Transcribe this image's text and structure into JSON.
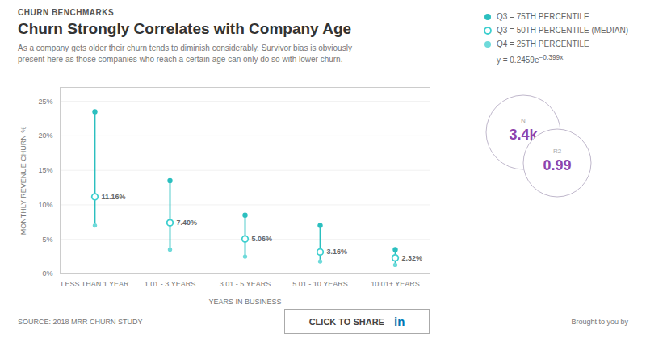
{
  "chart_data": {
    "type": "scatter",
    "tag": "CHURN BENCHMARKS",
    "title": "Churn Strongly Correlates with Company Age",
    "subtitle": "As a company gets older their churn tends to diminish considerably. Survivor bias is obviously\npresent here as those companies who reach a certain age can only do so with lower churn.",
    "xlabel": "YEARS IN BUSINESS",
    "ylabel": "MONTHLY REVENUE CHURN %",
    "categories": [
      "LESS THAN 1 YEAR",
      "1.01 - 3 YEARS",
      "3.01 - 5 YEARS",
      "5.01 - 10 YEARS",
      "10.01+ YEARS"
    ],
    "series": [
      {
        "name": "Q3 = 75TH PERCENTILE",
        "color": "#2bbfbf",
        "marker": "circle",
        "values": [
          0.235,
          0.135,
          0.085,
          0.07,
          0.035
        ]
      },
      {
        "name": "Q3 = 50TH PERCENTILE (MEDIAN)",
        "color": "#3ecfcf",
        "marker": "open_circle",
        "values": [
          0.1116,
          0.074,
          0.0506,
          0.0316,
          0.0232
        ],
        "data_labels": true,
        "value_labels": [
          "11.16%",
          "7.40%",
          "5.06%",
          "3.16%",
          "2.32%"
        ]
      },
      {
        "name": "Q4 = 25TH PERCENTILE",
        "color": "#6edada",
        "marker": "circle",
        "values": [
          0.07,
          0.035,
          0.025,
          0.018,
          0.013
        ]
      }
    ],
    "ylim": [
      0,
      0.27
    ],
    "yticks": [
      {
        "value": 0,
        "label": "0%"
      },
      {
        "value": 0.05,
        "label": "5%"
      },
      {
        "value": 0.1,
        "label": "10%"
      },
      {
        "value": 0.15,
        "label": "15%"
      },
      {
        "value": 0.2,
        "label": "20%"
      },
      {
        "value": 0.25,
        "label": "25%"
      }
    ],
    "grid": true,
    "legend": "upper right",
    "equation": {
      "base": "y = 0.2459e",
      "exponent": "−0.399x"
    },
    "stats": [
      {
        "name": "N",
        "label": "3.4k"
      },
      {
        "name": "R2",
        "label": "0.99"
      }
    ],
    "source": "SOURCE: 2018 MRR CHURN STUDY",
    "share_button": [
      "CLICK TO SHARE",
      "in"
    ],
    "credit": "Brought to you by"
  }
}
